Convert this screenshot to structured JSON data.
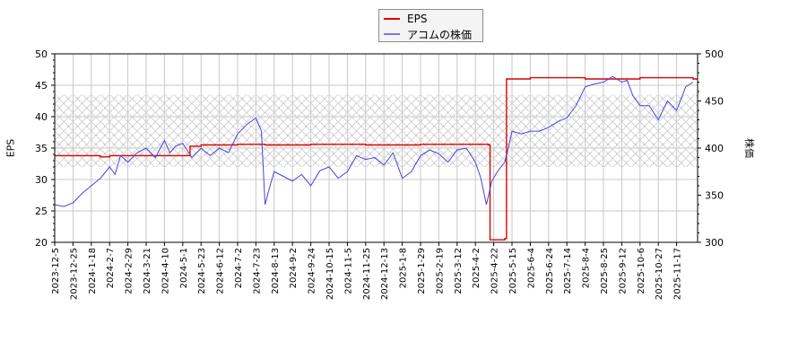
{
  "chart_data": {
    "type": "line",
    "title": "",
    "legend": {
      "position": "top-center",
      "entries": [
        {
          "label": "EPS",
          "color": "#dd0000"
        },
        {
          "label": "アコムの株価",
          "color": "#4444dd"
        }
      ]
    },
    "xlabel": "",
    "ylabel_left": "EPS",
    "ylabel_right": "株価",
    "ylim_left": [
      20,
      50
    ],
    "ylim_right": [
      300,
      500
    ],
    "yticks_left": [
      20,
      25,
      30,
      35,
      40,
      45,
      50
    ],
    "yticks_right": [
      300,
      350,
      400,
      450,
      500
    ],
    "grid": true,
    "x_tick_labels": [
      "2023-12-5",
      "2023-12-25",
      "2024-1-18",
      "2024-2-7",
      "2024-2-29",
      "2024-3-21",
      "2024-4-10",
      "2024-5-1",
      "2024-5-23",
      "2024-6-12",
      "2024-7-2",
      "2024-7-23",
      "2024-8-13",
      "2024-9-2",
      "2024-9-24",
      "2024-10-15",
      "2024-11-5",
      "2024-11-25",
      "2024-12-13",
      "2025-1-8",
      "2025-1-29",
      "2025-2-19",
      "2025-3-12",
      "2025-4-2",
      "2025-4-22",
      "2025-5-15",
      "2025-6-4",
      "2025-6-24",
      "2025-7-14",
      "2025-8-4",
      "2025-8-25",
      "2025-9-12",
      "2025-10-6",
      "2025-10-27",
      "2025-11-17"
    ],
    "shaded_band": {
      "axis": "left",
      "from": 32,
      "to": 43.5,
      "style": "crosshatch"
    },
    "series": [
      {
        "name": "EPS",
        "axis": "left",
        "color": "#dd0000",
        "x_index": [
          0,
          2.5,
          3,
          5,
          7,
          7.4,
          8,
          10,
          11.5,
          14,
          17,
          20,
          23.7,
          23.8,
          24.6,
          24.7,
          26,
          29,
          32,
          34.9
        ],
        "values": [
          33.8,
          33.6,
          33.8,
          33.8,
          33.8,
          35.3,
          35.5,
          35.6,
          35.5,
          35.6,
          35.5,
          35.6,
          35.5,
          20.4,
          20.6,
          46.0,
          46.2,
          46.0,
          46.2,
          46.0
        ]
      },
      {
        "name": "アコムの株価",
        "axis": "right",
        "color": "#4444dd",
        "x_index": [
          0,
          0.5,
          1,
          1.5,
          2,
          2.5,
          3,
          3.3,
          3.6,
          4,
          4.5,
          5,
          5.5,
          6,
          6.3,
          6.6,
          7,
          7.5,
          8,
          8.5,
          9,
          9.5,
          10,
          10.5,
          11,
          11.3,
          11.5,
          11.8,
          12,
          12.5,
          13,
          13.5,
          14,
          14.5,
          15,
          15.5,
          16,
          16.5,
          17,
          17.5,
          18,
          18.5,
          19,
          19.5,
          20,
          20.5,
          21,
          21.5,
          22,
          22.5,
          23,
          23.3,
          23.6,
          23.9,
          24.2,
          24.6,
          24.8,
          25,
          25.5,
          26,
          26.5,
          27,
          27.5,
          28,
          28.5,
          29,
          29.5,
          30,
          30.5,
          31,
          31.3,
          31.6,
          32,
          32.5,
          33,
          33.5,
          34,
          34.5,
          34.9
        ],
        "values": [
          340,
          338,
          342,
          352,
          360,
          368,
          380,
          372,
          392,
          385,
          395,
          400,
          390,
          408,
          395,
          402,
          405,
          390,
          400,
          392,
          400,
          395,
          415,
          425,
          432,
          418,
          340,
          362,
          375,
          370,
          365,
          372,
          360,
          376,
          380,
          368,
          375,
          392,
          388,
          390,
          382,
          395,
          368,
          375,
          392,
          398,
          394,
          385,
          398,
          400,
          385,
          368,
          340,
          365,
          375,
          385,
          400,
          418,
          415,
          418,
          418,
          422,
          428,
          432,
          445,
          465,
          468,
          470,
          476,
          470,
          472,
          456,
          445,
          445,
          430,
          450,
          440,
          465,
          470
        ]
      }
    ]
  }
}
